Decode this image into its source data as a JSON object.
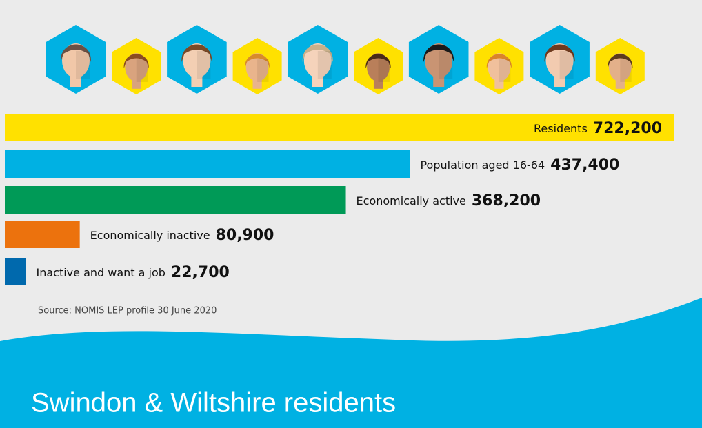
{
  "chart_data": {
    "type": "bar",
    "orientation": "horizontal",
    "title": "Swindon & Wiltshire residents",
    "source": "Source: NOMIS LEP profile 30 June 2020",
    "categories": [
      "Residents",
      "Population aged 16-64",
      "Economically active",
      "Economically inactive",
      "Inactive and want a job"
    ],
    "values": [
      722200,
      437400,
      368200,
      80900,
      22700
    ],
    "value_labels": [
      "722,200",
      "437,400",
      "368,200",
      "80,900",
      "22,700"
    ],
    "colors": [
      "#ffe100",
      "#00b1e3",
      "#009a57",
      "#ec720d",
      "#0069ad"
    ]
  }
}
